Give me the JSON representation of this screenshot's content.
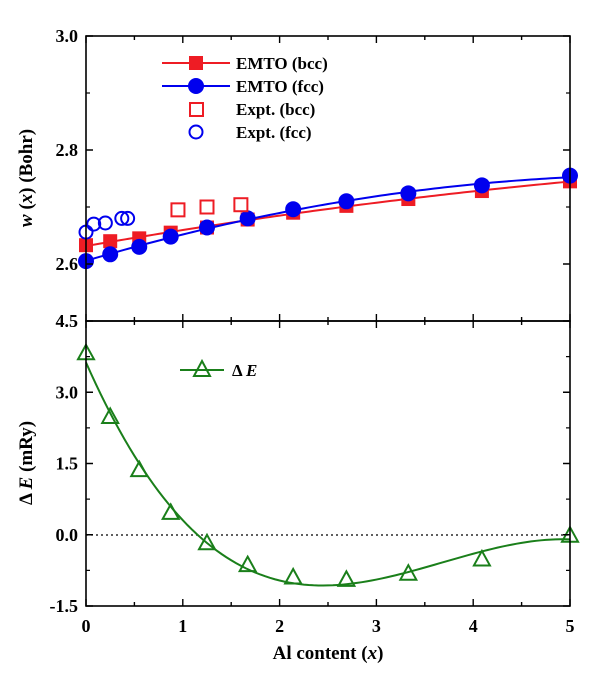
{
  "chart_data": [
    {
      "type": "scatter",
      "panel": "top",
      "ylabel_parts": [
        "w",
        " (",
        "x",
        ") (Bohr)"
      ],
      "ylim": [
        2.5,
        3.0
      ],
      "yticks": [
        2.6,
        2.8,
        3.0
      ],
      "ytick_labels": [
        "2.6",
        "2.8",
        "3.0"
      ],
      "xlim": [
        0,
        5
      ],
      "grid": false,
      "legend_position": "top-left",
      "series": [
        {
          "name": "EMTO (bcc)",
          "marker": "filled-square",
          "line": true,
          "color": "#ee1c24",
          "x": [
            0,
            0.25,
            0.55,
            0.875,
            1.25,
            1.67,
            2.14,
            2.69,
            3.33,
            4.09,
            5.0
          ],
          "y": [
            2.633,
            2.64,
            2.645,
            2.655,
            2.664,
            2.678,
            2.69,
            2.702,
            2.714,
            2.728,
            2.745
          ]
        },
        {
          "name": "EMTO (fcc)",
          "marker": "filled-circle",
          "line": true,
          "color": "#0000ee",
          "x": [
            0,
            0.25,
            0.55,
            0.875,
            1.25,
            1.67,
            2.14,
            2.69,
            3.33,
            4.09,
            5.0
          ],
          "y": [
            2.605,
            2.617,
            2.63,
            2.648,
            2.664,
            2.68,
            2.696,
            2.71,
            2.724,
            2.738,
            2.755
          ]
        },
        {
          "name": "Expt. (bcc)",
          "marker": "open-square",
          "line": false,
          "color": "#ee1c24",
          "x": [
            0.95,
            1.25,
            1.6
          ],
          "y": [
            2.695,
            2.7,
            2.704
          ]
        },
        {
          "name": "Expt. (fcc)",
          "marker": "open-circle",
          "line": false,
          "color": "#0000ee",
          "x": [
            0.0,
            0.08,
            0.2,
            0.37,
            0.43
          ],
          "y": [
            2.656,
            2.67,
            2.672,
            2.68,
            2.68
          ]
        }
      ]
    },
    {
      "type": "line",
      "panel": "bottom",
      "ylabel_parts": [
        "Δ ",
        "E",
        " (mRy)"
      ],
      "ylim": [
        -1.5,
        4.5
      ],
      "yticks": [
        -1.5,
        0.0,
        1.5,
        3.0,
        4.5
      ],
      "ytick_labels": [
        "-1.5",
        "0.0",
        "1.5",
        "3.0",
        "4.5"
      ],
      "xlim": [
        0,
        5
      ],
      "xticks": [
        0,
        1,
        2,
        3,
        4,
        5
      ],
      "xtick_labels": [
        "0",
        "1",
        "2",
        "3",
        "4",
        "5"
      ],
      "xlabel_parts": [
        "Al content (",
        "x",
        ")"
      ],
      "zero_line": "dotted",
      "grid": false,
      "legend_position": "top-left",
      "series": [
        {
          "name_parts": [
            "Δ ",
            "E"
          ],
          "marker": "open-triangle",
          "color": "#1a7f1a",
          "x": [
            0,
            0.25,
            0.55,
            0.875,
            1.25,
            1.67,
            2.14,
            2.69,
            3.33,
            4.09,
            5.0
          ],
          "y": [
            3.82,
            2.48,
            1.36,
            0.46,
            -0.18,
            -0.64,
            -0.9,
            -0.95,
            -0.82,
            -0.52,
            -0.02
          ]
        }
      ]
    }
  ]
}
